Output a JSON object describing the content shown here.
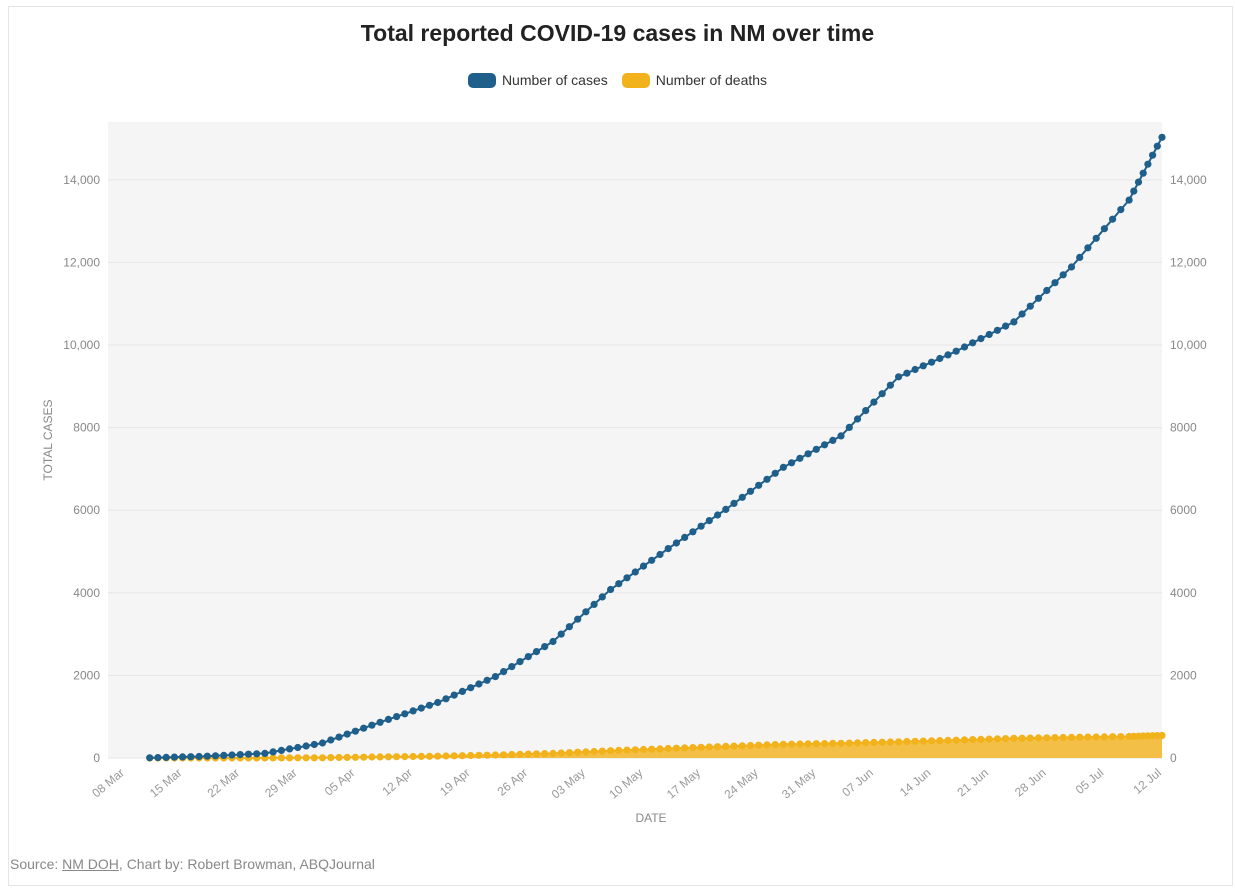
{
  "chart_data": {
    "type": "line",
    "title": "Total reported COVID-19 cases in NM over time",
    "xlabel": "DATE",
    "ylabel": "TOTAL CASES",
    "ylim": [
      0,
      15400
    ],
    "grid": true,
    "legend_position": "top-center",
    "y_ticks": [
      0,
      2000,
      4000,
      6000,
      8000,
      10000,
      12000,
      14000
    ],
    "y_tick_labels": [
      "0",
      "2000",
      "4000",
      "6000",
      "8000",
      "10,000",
      "12,000",
      "14,000"
    ],
    "x_ticks": [
      "08 Mar",
      "15 Mar",
      "22 Mar",
      "29 Mar",
      "05 Apr",
      "12 Apr",
      "19 Apr",
      "26 Apr",
      "03 May",
      "10 May",
      "17 May",
      "24 May",
      "31 May",
      "07 Jun",
      "14 Jun",
      "21 Jun",
      "28 Jun",
      "05 Jul",
      "12 Jul"
    ],
    "x": [
      "11 Mar",
      "18 Mar",
      "25 Mar",
      "01 Apr",
      "08 Apr",
      "15 Apr",
      "22 Apr",
      "29 Apr",
      "06 May",
      "13 May",
      "20 May",
      "27 May",
      "03 Jun",
      "10 Jun",
      "17 Jun",
      "24 Jun",
      "01 Jul",
      "08 Jul",
      "12 Jul"
    ],
    "series": [
      {
        "name": "Number of cases",
        "color": "#1f5f8b",
        "values": [
          4,
          43,
          112,
          363,
          865,
          1345,
          1970,
          2820,
          4080,
          5070,
          6020,
          7040,
          7800,
          9230,
          9850,
          10560,
          11890,
          13510,
          15030
        ]
      },
      {
        "name": "Number of deaths",
        "color": "#f2b21b",
        "values": [
          0,
          0,
          1,
          6,
          26,
          44,
          73,
          112,
          176,
          229,
          282,
          331,
          356,
          393,
          432,
          476,
          500,
          521,
          546
        ]
      }
    ]
  },
  "source": {
    "prefix": "Source: ",
    "link_text": "NM DOH",
    "suffix": ", Chart by: Robert Browman, ABQJournal"
  }
}
